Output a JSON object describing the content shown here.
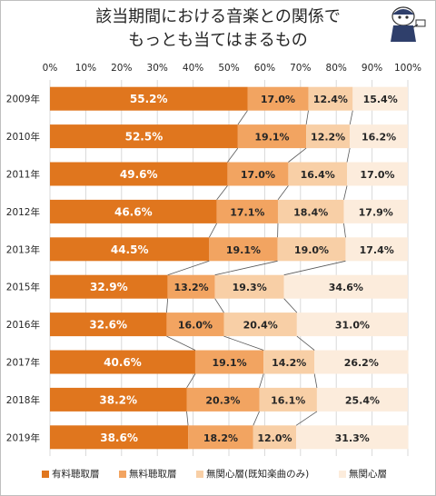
{
  "title": {
    "line1": "該当期間における音楽との関係で",
    "line2": "もっとも当てはまるもの"
  },
  "colors": {
    "paid": "#E0761E",
    "free": "#F2A461",
    "uninterested_known": "#F8CFA6",
    "uninterested": "#FCECDC",
    "grid": "#d9d9d9",
    "text": "#262626"
  },
  "chart_data": {
    "type": "bar",
    "orientation": "horizontal",
    "stacked": true,
    "percent": true,
    "categories": [
      "2009年",
      "2010年",
      "2011年",
      "2012年",
      "2013年",
      "2015年",
      "2016年",
      "2017年",
      "2018年",
      "2019年"
    ],
    "series": [
      {
        "name": "有料聴取層",
        "values": [
          55.2,
          52.5,
          49.6,
          46.6,
          44.5,
          32.9,
          32.6,
          40.6,
          38.2,
          38.6
        ]
      },
      {
        "name": "無料聴取層",
        "values": [
          17.0,
          19.1,
          17.0,
          17.1,
          19.1,
          13.2,
          16.0,
          19.1,
          20.3,
          18.2
        ]
      },
      {
        "name": "無関心層(既知楽曲のみ)",
        "values": [
          12.4,
          12.2,
          16.4,
          18.4,
          19.0,
          19.3,
          20.4,
          14.2,
          16.1,
          12.0
        ]
      },
      {
        "name": "無関心層",
        "values": [
          15.4,
          16.2,
          17.0,
          17.9,
          17.4,
          34.6,
          31.0,
          26.2,
          25.4,
          31.3
        ]
      }
    ],
    "labels": [
      [
        "55.2%",
        "52.5%",
        "49.6%",
        "46.6%",
        "44.5%",
        "32.9%",
        "32.6%",
        "40.6%",
        "38.2%",
        "38.6%"
      ],
      [
        "17.0%",
        "19.1%",
        "17.0%",
        "17.1%",
        "19.1%",
        "13.2%",
        "16.0%",
        "19.1%",
        "20.3%",
        "18.2%"
      ],
      [
        "12.4%",
        "12.2%",
        "16.4%",
        "18.4%",
        "19.0%",
        "19.3%",
        "20.4%",
        "14.2%",
        "16.1%",
        "12.0%"
      ],
      [
        "15.4%",
        "16.2%",
        "17.0%",
        "17.9%",
        "17.4%",
        "34.6%",
        "31.0%",
        "26.2%",
        "25.4%",
        "31.3%"
      ]
    ],
    "xlim": [
      0,
      100
    ],
    "x_ticks": [
      "0%",
      "10%",
      "20%",
      "30%",
      "40%",
      "50%",
      "60%",
      "70%",
      "80%",
      "90%",
      "100%"
    ],
    "grid": true,
    "series_lines": true,
    "legend_position": "bottom"
  }
}
